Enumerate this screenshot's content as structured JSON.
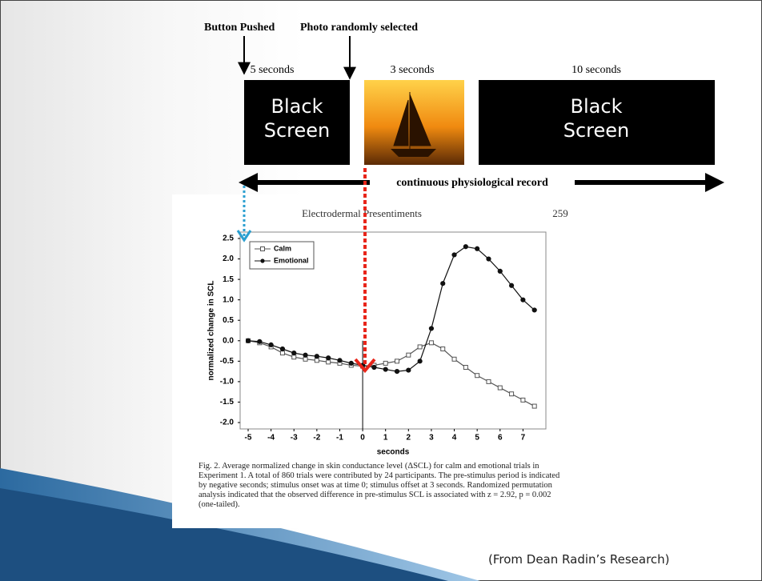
{
  "diagram": {
    "button_label": "Button Pushed",
    "photo_label": "Photo randomly selected",
    "durations": [
      "5 seconds",
      "3 seconds",
      "10 seconds"
    ],
    "screens": [
      "Black\nScreen",
      "Black\nScreen"
    ],
    "record_label": "continuous physiological record"
  },
  "paper": {
    "page_number": "259",
    "caption": "Fig. 2.   Average normalized change in skin conductance level (ΔSCL) for calm and emotional trials in Experiment 1. A total of 860 trials were contributed by 24 participants. The pre-stimulus period is indicated by negative seconds; stimulus onset was at time 0; stimulus offset at 3 seconds. Randomized permutation analysis indicated that the observed difference in pre-stimulus SCL is associated with z = 2.92, p = 0.002 (one-tailed)."
  },
  "footer": "(From Dean Radin’s Research)",
  "chart_data": {
    "type": "line",
    "title": "Electrodermal Presentiments",
    "x_label": "seconds",
    "y_label": "normalized change in SCL",
    "x": [
      -5,
      -4.5,
      -4,
      -3.5,
      -3,
      -2.5,
      -2,
      -1.5,
      -1,
      -0.5,
      0,
      0.5,
      1,
      1.5,
      2,
      2.5,
      3,
      3.5,
      4,
      4.5,
      5,
      5.5,
      6,
      6.5,
      7,
      7.5
    ],
    "series": [
      {
        "name": "Calm",
        "color": "#555555",
        "marker": "square",
        "values": [
          0,
          -0.05,
          -0.15,
          -0.3,
          -0.4,
          -0.45,
          -0.48,
          -0.52,
          -0.55,
          -0.6,
          -0.62,
          -0.6,
          -0.55,
          -0.5,
          -0.35,
          -0.15,
          -0.05,
          -0.2,
          -0.45,
          -0.65,
          -0.85,
          -1.0,
          -1.15,
          -1.3,
          -1.45,
          -1.6
        ]
      },
      {
        "name": "Emotional",
        "color": "#111111",
        "marker": "circle",
        "values": [
          0,
          -0.02,
          -0.1,
          -0.2,
          -0.3,
          -0.35,
          -0.38,
          -0.42,
          -0.48,
          -0.55,
          -0.6,
          -0.65,
          -0.7,
          -0.75,
          -0.72,
          -0.5,
          0.3,
          1.4,
          2.1,
          2.3,
          2.25,
          2.0,
          1.7,
          1.35,
          1.0,
          0.75
        ]
      }
    ],
    "xlim": [
      -5.35,
      8.0
    ],
    "ylim": [
      -2,
      2.5
    ],
    "xticks": [
      -5,
      -4,
      -3,
      -2,
      -1,
      0,
      1,
      2,
      3,
      4,
      5,
      6,
      7
    ],
    "yticks": [
      2.5,
      {
        "value": 2,
        "label": "2.0"
      },
      1.5,
      {
        "value": 1,
        "label": "1.0"
      },
      0.5,
      {
        "value": 0,
        "label": "0.0"
      },
      -0.5,
      {
        "value": -1,
        "label": "-1.0"
      },
      -1.5,
      {
        "value": -2,
        "label": "-2.0"
      }
    ],
    "legend": "top-left"
  }
}
